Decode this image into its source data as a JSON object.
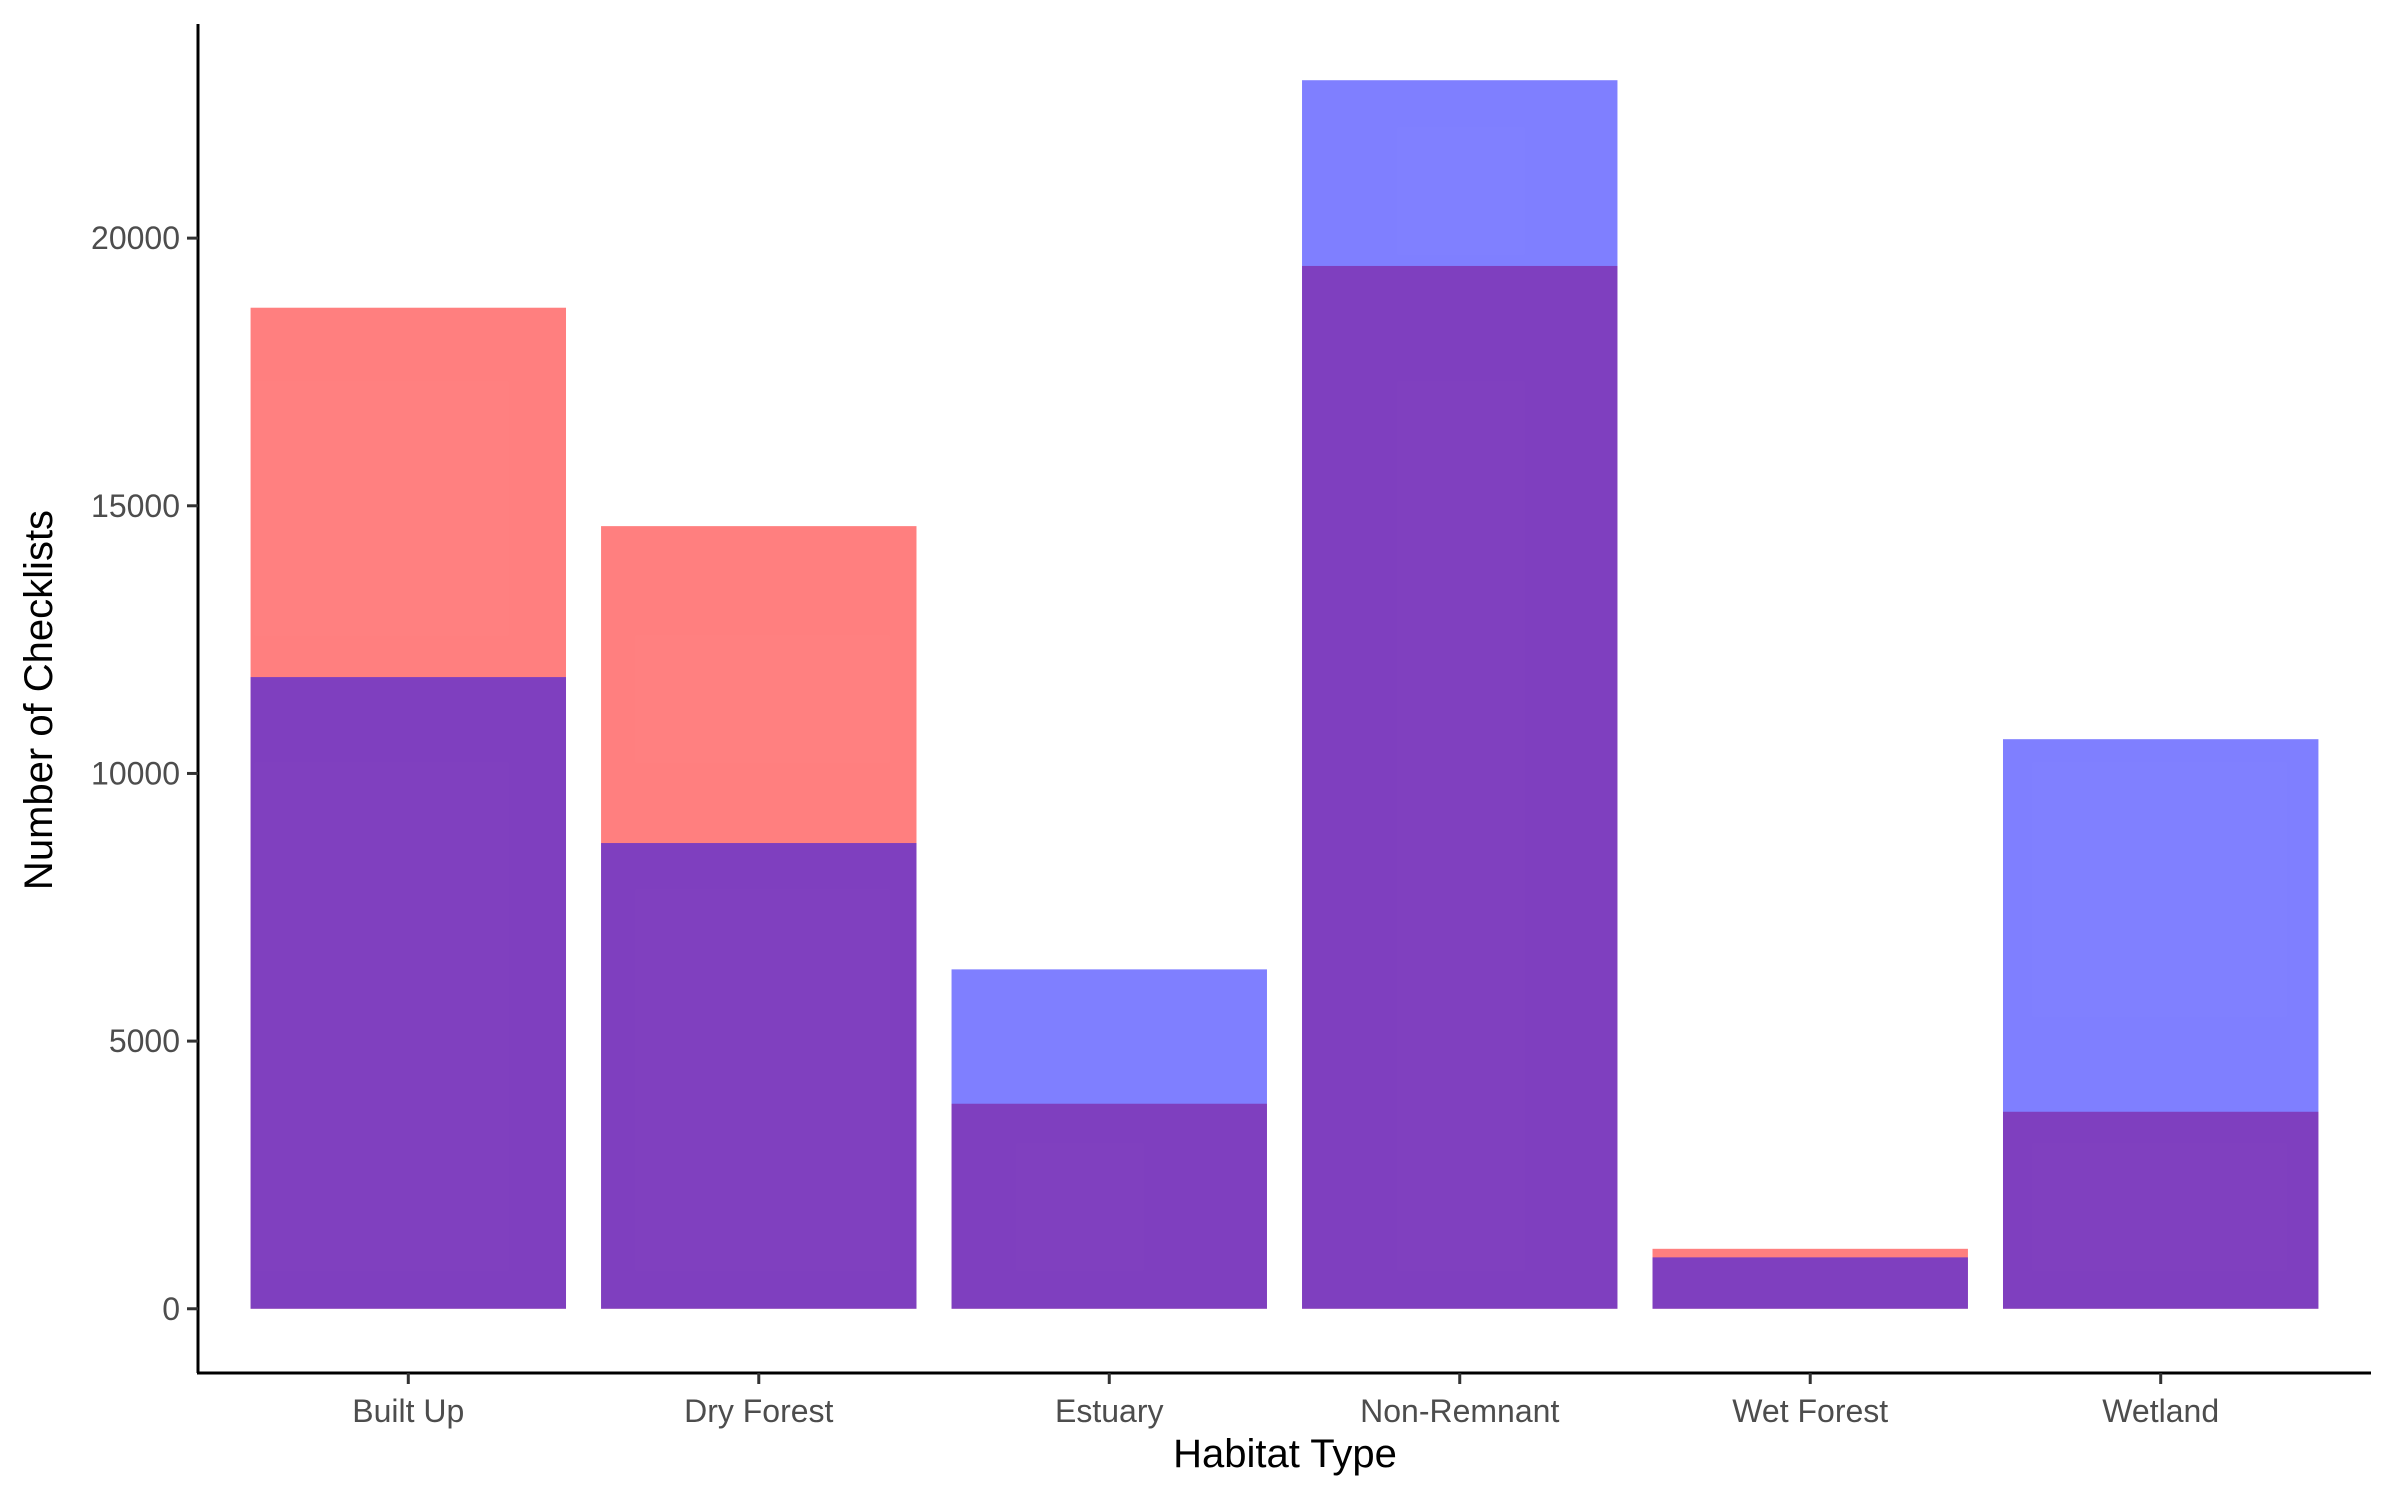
{
  "chart_data": {
    "type": "bar",
    "xlabel": "Habitat Type",
    "ylabel": "Number of Checklists",
    "categories": [
      "Built Up",
      "Dry Forest",
      "Estuary",
      "Non-Remnant",
      "Wet Forest",
      "Wetland"
    ],
    "series": [
      {
        "color": "#ff0000",
        "opacity": 0.5,
        "values": [
          18700,
          14620,
          3830,
          19480,
          1120,
          3680
        ]
      },
      {
        "color": "#0000ff",
        "opacity": 0.5,
        "values": [
          11800,
          8700,
          6340,
          22950,
          960,
          10640
        ]
      }
    ],
    "overlap": "identity",
    "ylim": [
      -1200,
      24000
    ],
    "yticks": [
      0,
      5000,
      10000,
      15000,
      20000
    ],
    "grid": false,
    "legend": "none"
  }
}
